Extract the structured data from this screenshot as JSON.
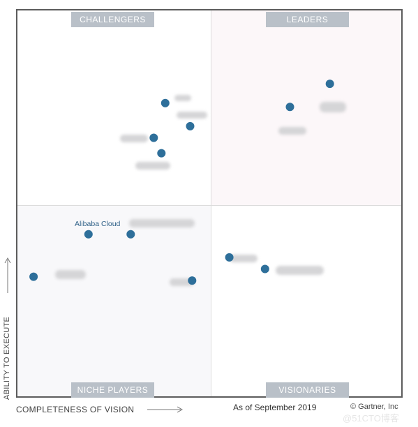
{
  "chart_data": {
    "type": "scatter",
    "title": "",
    "as_of": "As of September 2019",
    "copyright": "© Gartner, Inc",
    "xlabel": "COMPLETENESS OF VISION",
    "ylabel": "ABILITY TO EXECUTE",
    "xlim": [
      0,
      1
    ],
    "ylim": [
      0,
      1
    ],
    "grid": false,
    "quadrants": {
      "top_left": "CHALLENGERS",
      "top_right": "LEADERS",
      "bottom_left": "NICHE PLAYERS",
      "bottom_right": "VISIONARIES"
    },
    "points": [
      {
        "label": "",
        "x": 0.385,
        "y": 0.76
      },
      {
        "label": "",
        "x": 0.45,
        "y": 0.7
      },
      {
        "label": "",
        "x": 0.71,
        "y": 0.75
      },
      {
        "label": "",
        "x": 0.814,
        "y": 0.81
      },
      {
        "label": "",
        "x": 0.355,
        "y": 0.67
      },
      {
        "label": "",
        "x": 0.375,
        "y": 0.63
      },
      {
        "label": "Alibaba Cloud",
        "x": 0.185,
        "y": 0.42
      },
      {
        "label": "",
        "x": 0.295,
        "y": 0.42
      },
      {
        "label": "",
        "x": 0.042,
        "y": 0.31
      },
      {
        "label": "",
        "x": 0.455,
        "y": 0.3
      },
      {
        "label": "",
        "x": 0.552,
        "y": 0.36
      },
      {
        "label": "",
        "x": 0.645,
        "y": 0.33
      }
    ]
  },
  "watermark": "@51CTO博客"
}
